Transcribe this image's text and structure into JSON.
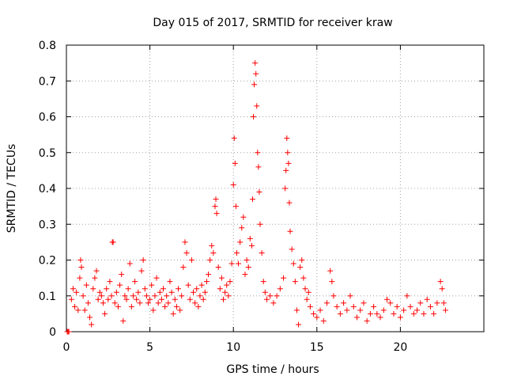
{
  "chart_data": {
    "type": "scatter",
    "title": "Day 015 of 2017, SRMTID for receiver kraw",
    "xlabel": "GPS time / hours",
    "ylabel": "SRMTID / TECUs",
    "xlim": [
      0,
      25
    ],
    "ylim": [
      0,
      0.8
    ],
    "x_ticks": [
      0,
      5,
      10,
      15,
      20
    ],
    "x_tick_labels": [
      "0",
      "5",
      "10",
      "15",
      "20"
    ],
    "y_ticks": [
      0,
      0.1,
      0.2,
      0.3,
      0.4,
      0.5,
      0.6,
      0.7,
      0.8
    ],
    "y_tick_labels": [
      "0",
      "0.1",
      "0.2",
      "0.3",
      "0.4",
      "0.5",
      "0.6",
      "0.7",
      "0.8"
    ],
    "grid": true,
    "marker": "+",
    "series": [
      {
        "name": "SRMTID",
        "color": "#ff0000",
        "points": [
          [
            0.05,
            0.0
          ],
          [
            0.1,
            0.0
          ],
          [
            0.15,
            0.0
          ],
          [
            0.3,
            0.09
          ],
          [
            0.4,
            0.12
          ],
          [
            0.5,
            0.07
          ],
          [
            0.6,
            0.11
          ],
          [
            0.7,
            0.06
          ],
          [
            0.8,
            0.15
          ],
          [
            0.85,
            0.2
          ],
          [
            0.9,
            0.18
          ],
          [
            1.0,
            0.1
          ],
          [
            1.1,
            0.06
          ],
          [
            1.2,
            0.13
          ],
          [
            1.3,
            0.08
          ],
          [
            1.4,
            0.04
          ],
          [
            1.5,
            0.02
          ],
          [
            1.6,
            0.12
          ],
          [
            1.7,
            0.15
          ],
          [
            1.8,
            0.17
          ],
          [
            1.9,
            0.09
          ],
          [
            2.0,
            0.11
          ],
          [
            2.1,
            0.1
          ],
          [
            2.2,
            0.08
          ],
          [
            2.3,
            0.05
          ],
          [
            2.4,
            0.12
          ],
          [
            2.5,
            0.09
          ],
          [
            2.6,
            0.14
          ],
          [
            2.7,
            0.1
          ],
          [
            2.75,
            0.25
          ],
          [
            2.8,
            0.25
          ],
          [
            2.9,
            0.08
          ],
          [
            3.0,
            0.11
          ],
          [
            3.1,
            0.07
          ],
          [
            3.2,
            0.13
          ],
          [
            3.3,
            0.16
          ],
          [
            3.4,
            0.03
          ],
          [
            3.5,
            0.1
          ],
          [
            3.6,
            0.09
          ],
          [
            3.7,
            0.12
          ],
          [
            3.8,
            0.19
          ],
          [
            3.9,
            0.07
          ],
          [
            4.0,
            0.1
          ],
          [
            4.1,
            0.14
          ],
          [
            4.2,
            0.09
          ],
          [
            4.3,
            0.11
          ],
          [
            4.4,
            0.08
          ],
          [
            4.5,
            0.17
          ],
          [
            4.6,
            0.2
          ],
          [
            4.7,
            0.12
          ],
          [
            4.8,
            0.1
          ],
          [
            4.9,
            0.08
          ],
          [
            5.0,
            0.09
          ],
          [
            5.1,
            0.13
          ],
          [
            5.2,
            0.06
          ],
          [
            5.3,
            0.1
          ],
          [
            5.4,
            0.15
          ],
          [
            5.5,
            0.08
          ],
          [
            5.6,
            0.11
          ],
          [
            5.7,
            0.09
          ],
          [
            5.8,
            0.12
          ],
          [
            5.9,
            0.07
          ],
          [
            6.0,
            0.1
          ],
          [
            6.1,
            0.08
          ],
          [
            6.2,
            0.14
          ],
          [
            6.3,
            0.11
          ],
          [
            6.4,
            0.05
          ],
          [
            6.5,
            0.09
          ],
          [
            6.6,
            0.07
          ],
          [
            6.7,
            0.12
          ],
          [
            6.8,
            0.06
          ],
          [
            6.9,
            0.1
          ],
          [
            7.0,
            0.18
          ],
          [
            7.1,
            0.25
          ],
          [
            7.2,
            0.22
          ],
          [
            7.3,
            0.13
          ],
          [
            7.4,
            0.09
          ],
          [
            7.5,
            0.2
          ],
          [
            7.6,
            0.11
          ],
          [
            7.7,
            0.08
          ],
          [
            7.8,
            0.12
          ],
          [
            7.9,
            0.07
          ],
          [
            8.0,
            0.1
          ],
          [
            8.1,
            0.13
          ],
          [
            8.2,
            0.09
          ],
          [
            8.3,
            0.11
          ],
          [
            8.4,
            0.14
          ],
          [
            8.5,
            0.16
          ],
          [
            8.6,
            0.2
          ],
          [
            8.7,
            0.24
          ],
          [
            8.8,
            0.22
          ],
          [
            8.9,
            0.35
          ],
          [
            8.95,
            0.37
          ],
          [
            9.0,
            0.33
          ],
          [
            9.1,
            0.18
          ],
          [
            9.2,
            0.12
          ],
          [
            9.3,
            0.15
          ],
          [
            9.4,
            0.09
          ],
          [
            9.5,
            0.11
          ],
          [
            9.6,
            0.13
          ],
          [
            9.7,
            0.1
          ],
          [
            9.8,
            0.14
          ],
          [
            9.9,
            0.19
          ],
          [
            10.0,
            0.41
          ],
          [
            10.05,
            0.54
          ],
          [
            10.1,
            0.47
          ],
          [
            10.15,
            0.35
          ],
          [
            10.2,
            0.22
          ],
          [
            10.3,
            0.19
          ],
          [
            10.4,
            0.25
          ],
          [
            10.5,
            0.29
          ],
          [
            10.6,
            0.32
          ],
          [
            10.7,
            0.16
          ],
          [
            10.8,
            0.2
          ],
          [
            10.9,
            0.18
          ],
          [
            11.0,
            0.26
          ],
          [
            11.1,
            0.24
          ],
          [
            11.15,
            0.37
          ],
          [
            11.2,
            0.6
          ],
          [
            11.25,
            0.69
          ],
          [
            11.3,
            0.75
          ],
          [
            11.35,
            0.72
          ],
          [
            11.4,
            0.63
          ],
          [
            11.45,
            0.5
          ],
          [
            11.5,
            0.46
          ],
          [
            11.55,
            0.39
          ],
          [
            11.6,
            0.3
          ],
          [
            11.7,
            0.22
          ],
          [
            11.8,
            0.14
          ],
          [
            11.9,
            0.11
          ],
          [
            12.0,
            0.09
          ],
          [
            12.2,
            0.1
          ],
          [
            12.4,
            0.08
          ],
          [
            12.6,
            0.1
          ],
          [
            12.8,
            0.12
          ],
          [
            13.0,
            0.15
          ],
          [
            13.1,
            0.4
          ],
          [
            13.15,
            0.45
          ],
          [
            13.2,
            0.54
          ],
          [
            13.25,
            0.5
          ],
          [
            13.3,
            0.47
          ],
          [
            13.35,
            0.36
          ],
          [
            13.4,
            0.28
          ],
          [
            13.5,
            0.23
          ],
          [
            13.6,
            0.19
          ],
          [
            13.7,
            0.14
          ],
          [
            13.8,
            0.06
          ],
          [
            13.9,
            0.02
          ],
          [
            14.0,
            0.18
          ],
          [
            14.1,
            0.2
          ],
          [
            14.2,
            0.15
          ],
          [
            14.3,
            0.12
          ],
          [
            14.4,
            0.09
          ],
          [
            14.5,
            0.11
          ],
          [
            14.6,
            0.07
          ],
          [
            14.8,
            0.05
          ],
          [
            15.0,
            0.04
          ],
          [
            15.2,
            0.06
          ],
          [
            15.4,
            0.03
          ],
          [
            15.6,
            0.08
          ],
          [
            15.8,
            0.17
          ],
          [
            15.9,
            0.14
          ],
          [
            16.0,
            0.1
          ],
          [
            16.2,
            0.07
          ],
          [
            16.4,
            0.05
          ],
          [
            16.6,
            0.08
          ],
          [
            16.8,
            0.06
          ],
          [
            17.0,
            0.1
          ],
          [
            17.2,
            0.07
          ],
          [
            17.4,
            0.04
          ],
          [
            17.6,
            0.06
          ],
          [
            17.8,
            0.08
          ],
          [
            18.0,
            0.03
          ],
          [
            18.2,
            0.05
          ],
          [
            18.4,
            0.07
          ],
          [
            18.6,
            0.05
          ],
          [
            18.8,
            0.04
          ],
          [
            19.0,
            0.06
          ],
          [
            19.2,
            0.09
          ],
          [
            19.4,
            0.08
          ],
          [
            19.6,
            0.05
          ],
          [
            19.8,
            0.07
          ],
          [
            20.0,
            0.04
          ],
          [
            20.2,
            0.06
          ],
          [
            20.4,
            0.1
          ],
          [
            20.6,
            0.07
          ],
          [
            20.8,
            0.05
          ],
          [
            21.0,
            0.06
          ],
          [
            21.2,
            0.08
          ],
          [
            21.4,
            0.05
          ],
          [
            21.6,
            0.09
          ],
          [
            21.8,
            0.07
          ],
          [
            22.0,
            0.05
          ],
          [
            22.2,
            0.08
          ],
          [
            22.4,
            0.14
          ],
          [
            22.5,
            0.12
          ],
          [
            22.6,
            0.08
          ],
          [
            22.7,
            0.06
          ]
        ]
      }
    ]
  }
}
